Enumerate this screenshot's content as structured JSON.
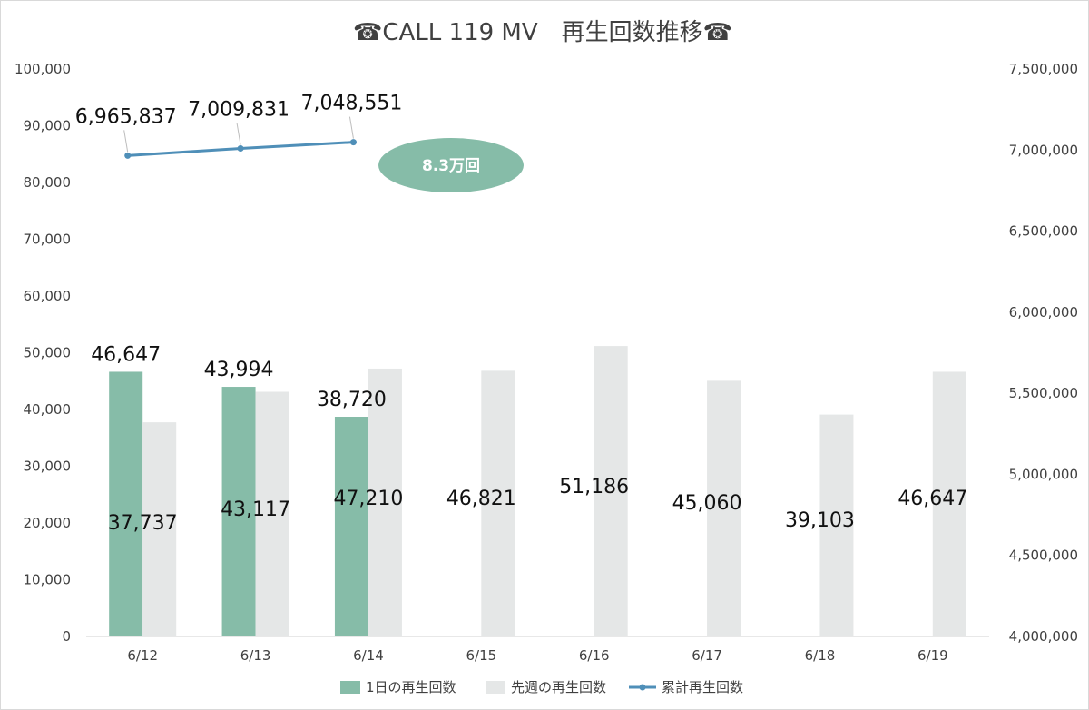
{
  "chart_data": {
    "type": "bar",
    "title": "☎CALL 119 MV　再生回数推移☎",
    "categories": [
      "6/12",
      "6/13",
      "6/14",
      "6/15",
      "6/16",
      "6/17",
      "6/18",
      "6/19"
    ],
    "y_left": {
      "range": [
        0,
        100000
      ],
      "ticks": [
        "0",
        "10,000",
        "20,000",
        "30,000",
        "40,000",
        "50,000",
        "60,000",
        "70,000",
        "80,000",
        "90,000",
        "100,000"
      ]
    },
    "y_right": {
      "range": [
        4000000,
        7500000
      ],
      "ticks": [
        "4,000,000",
        "4,500,000",
        "5,000,000",
        "5,500,000",
        "6,000,000",
        "6,500,000",
        "7,000,000",
        "7,500,000"
      ]
    },
    "series": [
      {
        "name": "1日の再生回数",
        "kind": "bar",
        "axis": "left",
        "color": "#86bca8",
        "values": [
          46647,
          43994,
          38720,
          null,
          null,
          null,
          null,
          null
        ],
        "labels": [
          "46,647",
          "43,994",
          "38,720"
        ]
      },
      {
        "name": "先週の再生回数",
        "kind": "bar",
        "axis": "left",
        "color": "#e5e7e7",
        "values": [
          37737,
          43117,
          47210,
          46821,
          51186,
          45060,
          39103,
          46647
        ],
        "labels": [
          "37,737",
          "43,117",
          "47,210",
          "46,821",
          "51,186",
          "45,060",
          "39,103",
          "46,647"
        ]
      },
      {
        "name": "累計再生回数",
        "kind": "line",
        "axis": "right",
        "color": "#4f8fb8",
        "values": [
          6965837,
          7009831,
          7048551,
          null,
          null,
          null,
          null,
          null
        ],
        "labels": [
          "6,965,837",
          "7,009,831",
          "7,048,551"
        ]
      }
    ],
    "annotations": [
      {
        "text": "8.3万回",
        "color": "#86bca8"
      }
    ],
    "legend": {
      "position": "bottom"
    },
    "grid": false
  }
}
